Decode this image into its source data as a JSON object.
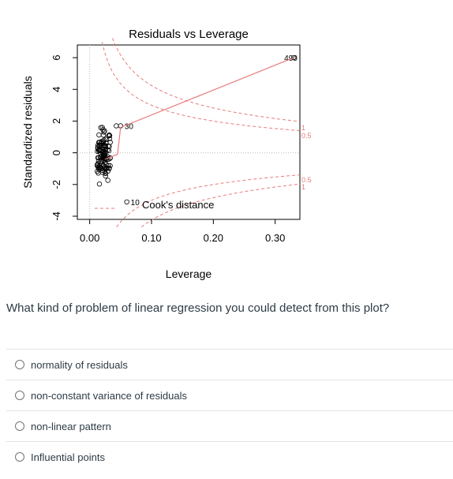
{
  "chart_data": {
    "type": "scatter",
    "title": "Residuals vs Leverage",
    "xlabel": "Leverage",
    "ylabel": "Standardized residuals",
    "xlim": [
      -0.02,
      0.34
    ],
    "ylim": [
      -4.2,
      6.8
    ],
    "x_ticks": [
      "0.00",
      "0.10",
      "0.20",
      "0.30"
    ],
    "x_tick_values": [
      0.0,
      0.1,
      0.2,
      0.3
    ],
    "y_ticks": [
      "-4",
      "-2",
      "0",
      "2",
      "4",
      "6"
    ],
    "y_tick_values": [
      -4,
      -2,
      0,
      2,
      4,
      6
    ],
    "labeled_points": [
      {
        "label": "490",
        "x": 0.33,
        "y": 6.0
      },
      {
        "label": "30",
        "x": 0.05,
        "y": 1.7
      },
      {
        "label": "10",
        "x": 0.06,
        "y": -3.1
      }
    ],
    "extra_points": [
      {
        "x": 0.043,
        "y": 1.7
      },
      {
        "x": 0.025,
        "y": -0.2
      }
    ],
    "cooks_label": "Cook's distance",
    "contour_labels": {
      "upper_1": "1",
      "upper_05": "0.5",
      "lower_05": "0.5",
      "lower_1": "1"
    },
    "colors": {
      "points": "#000000",
      "smoother": "#e87a7a",
      "contour": "#e87a7a",
      "zero_line": "#bbbbbb"
    }
  },
  "question": "What kind of problem of linear regression you could detect from this plot?",
  "options": [
    {
      "label": "normality of residuals"
    },
    {
      "label": "non-constant variance of residuals"
    },
    {
      "label": "non-linear pattern"
    },
    {
      "label": "Influential points"
    }
  ]
}
